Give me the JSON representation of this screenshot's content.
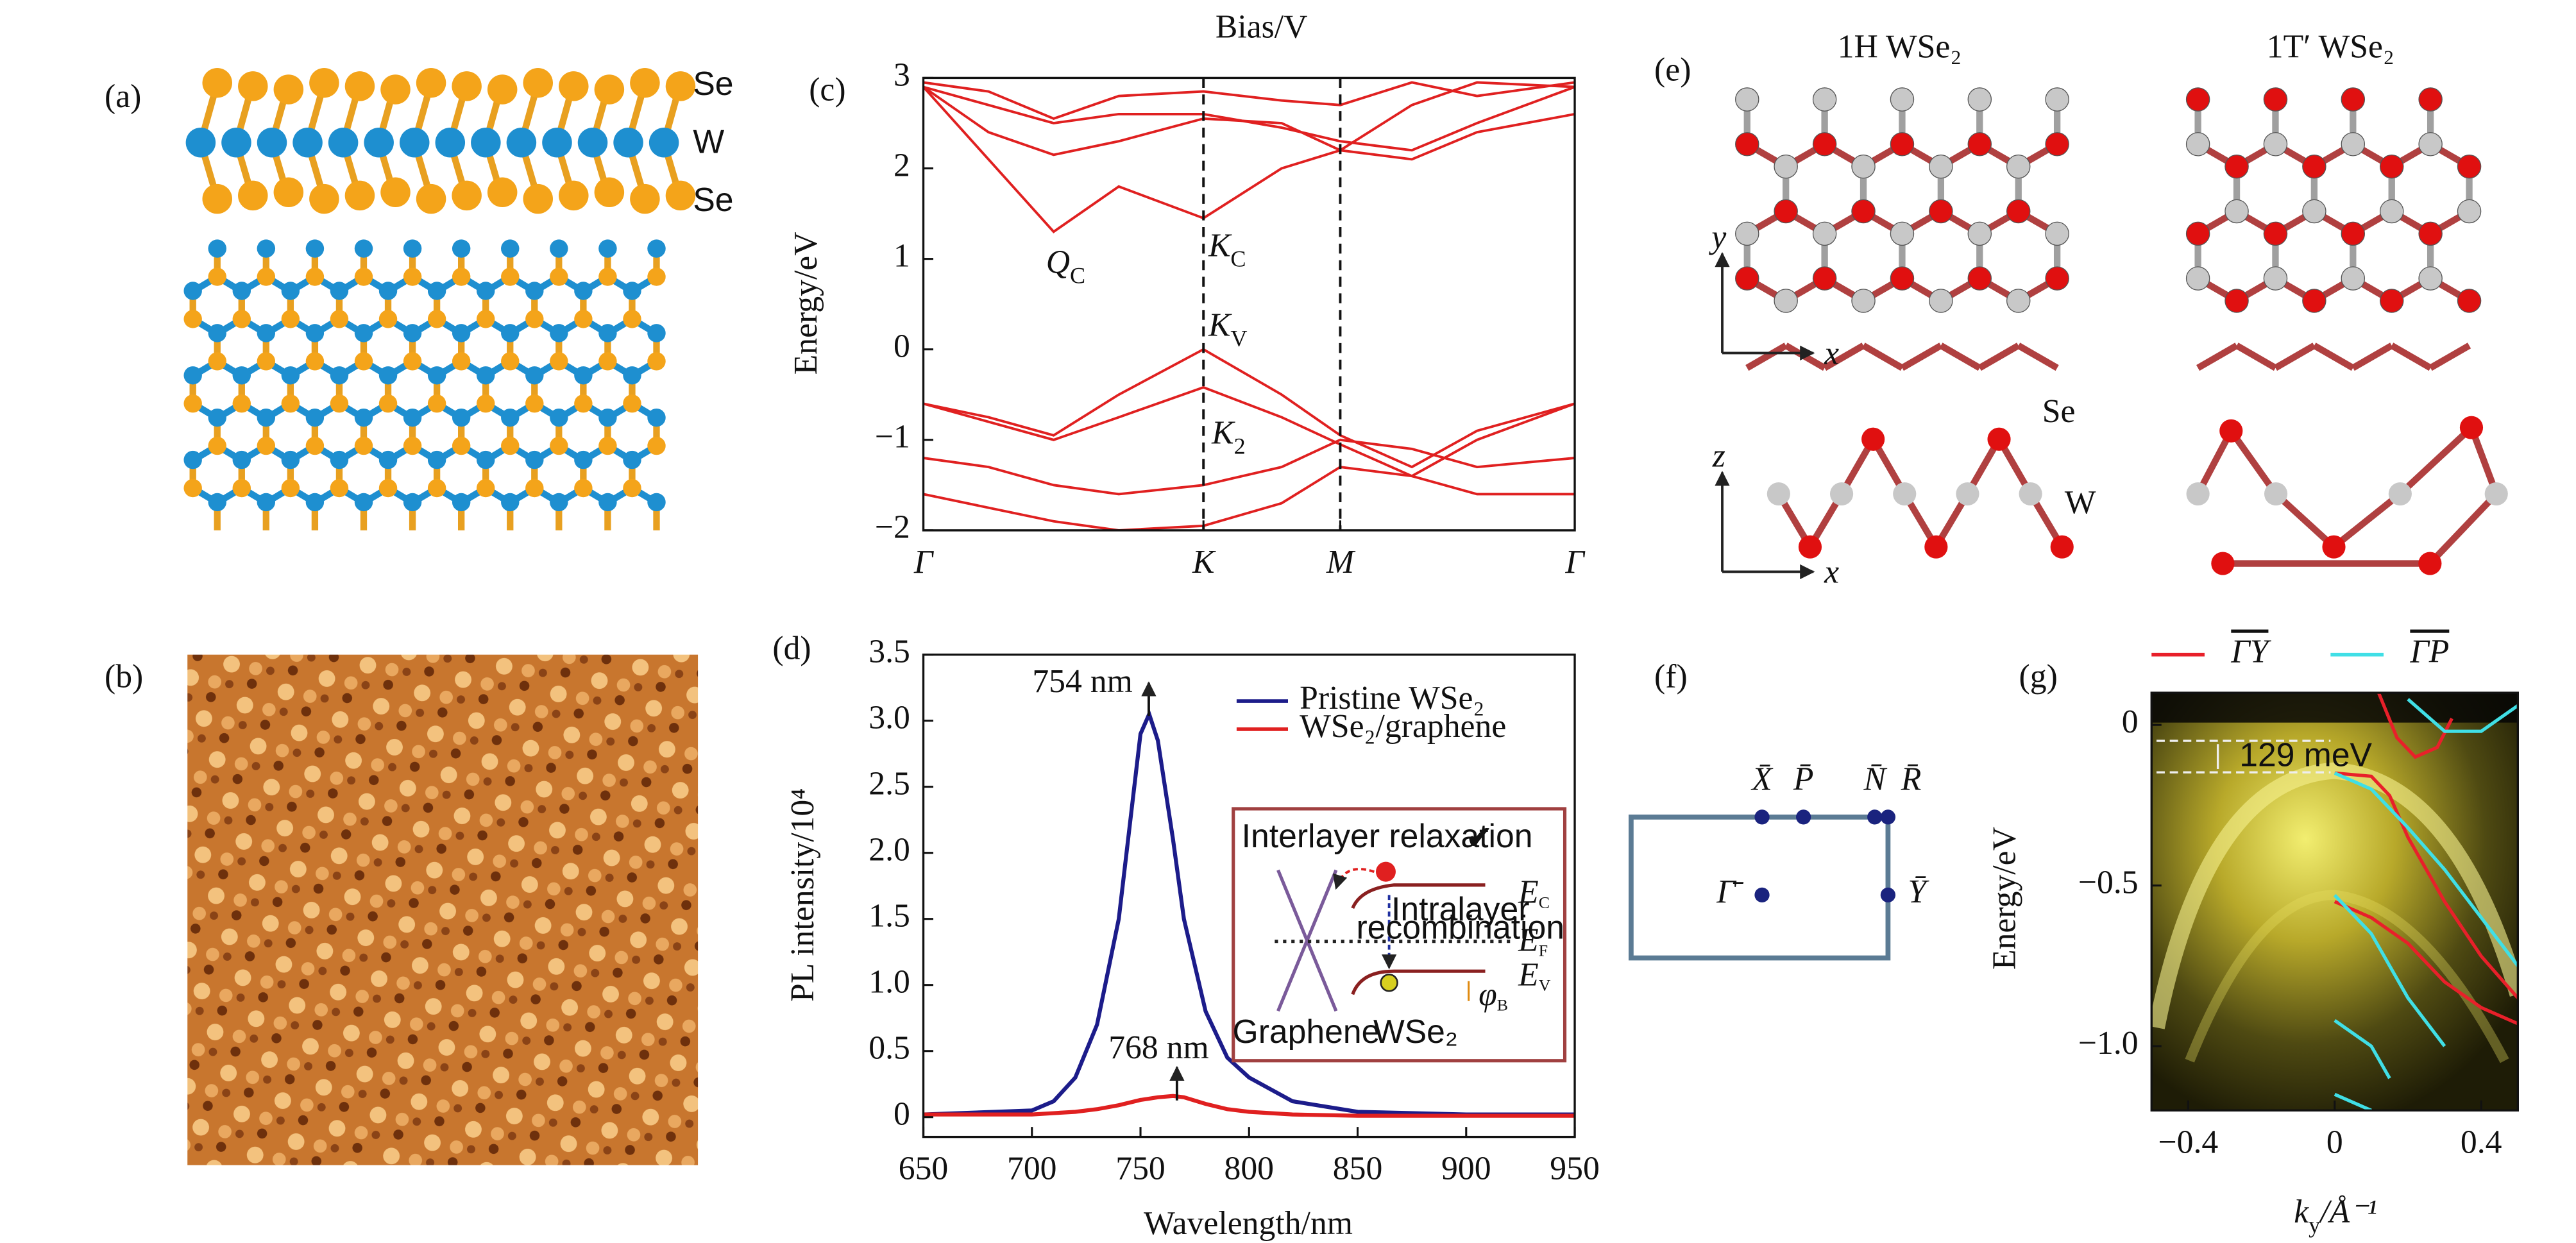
{
  "panel_labels": [
    "(a)",
    "(b)",
    "(c)",
    "(d)",
    "(e)",
    "(f)",
    "(g)"
  ],
  "panel_a": {
    "atoms": [
      "Se",
      "W",
      "Se"
    ]
  },
  "panel_e": {
    "titles": [
      "1H WSe₂",
      "1T′ WSe₂"
    ],
    "axes": [
      "y",
      "x",
      "z",
      "x"
    ],
    "atoms": [
      "Se",
      "W"
    ]
  },
  "panel_f": {
    "points": [
      "X̄",
      "P̄",
      "N̄",
      "R̄",
      "Γ̄",
      "Ȳ"
    ]
  },
  "chart_data": [
    {
      "type": "line",
      "title": "Bias/V",
      "ylabel": "Energy/eV",
      "xlim": [
        0,
        1
      ],
      "xticks": [
        {
          "value": 0,
          "label": "Γ"
        },
        {
          "value": 0.43,
          "label": "K"
        },
        {
          "value": 0.64,
          "label": "M"
        },
        {
          "value": 1,
          "label": "Γ"
        }
      ],
      "ylim": [
        -2,
        3
      ],
      "yticks": [
        {
          "value": -2,
          "label": "−2"
        },
        {
          "value": -1,
          "label": "−1"
        },
        0,
        1,
        2,
        3
      ],
      "vlines": [
        0.43,
        0.64
      ],
      "color": "#e02020",
      "x": [
        0,
        0.1,
        0.2,
        0.3,
        0.43,
        0.55,
        0.64,
        0.75,
        0.85,
        1
      ],
      "series": [
        {
          "values": [
            2.9,
            2.1,
            1.3,
            1.8,
            1.45,
            2.0,
            2.2,
            2.7,
            2.95,
            2.9
          ]
        },
        {
          "values": [
            2.9,
            2.4,
            2.15,
            2.3,
            2.55,
            2.5,
            2.2,
            2.1,
            2.4,
            2.6
          ]
        },
        {
          "values": [
            2.9,
            2.7,
            2.5,
            2.6,
            2.6,
            2.45,
            2.3,
            2.2,
            2.5,
            2.9
          ]
        },
        {
          "values": [
            2.95,
            2.85,
            2.55,
            2.8,
            2.85,
            2.75,
            2.7,
            2.95,
            2.8,
            2.95
          ]
        },
        {
          "values": [
            -0.6,
            -0.75,
            -0.95,
            -0.5,
            0.0,
            -0.5,
            -0.95,
            -1.3,
            -0.9,
            -0.6
          ]
        },
        {
          "values": [
            -0.6,
            -0.8,
            -1.0,
            -0.75,
            -0.42,
            -0.75,
            -1.05,
            -1.4,
            -1.0,
            -0.6
          ]
        },
        {
          "values": [
            -1.2,
            -1.3,
            -1.5,
            -1.6,
            -1.5,
            -1.3,
            -1.0,
            -1.1,
            -1.3,
            -1.2
          ]
        },
        {
          "values": [
            -1.6,
            -1.75,
            -1.9,
            -2.0,
            -1.95,
            -1.7,
            -1.3,
            -1.4,
            -1.6,
            -1.6
          ]
        }
      ],
      "annotations": [
        {
          "text": "Q",
          "sub": "C"
        },
        {
          "text": "K",
          "sub": "C"
        },
        {
          "text": "K",
          "sub": "V"
        },
        {
          "text": "K",
          "sub": "2"
        }
      ]
    },
    {
      "type": "line",
      "xlabel": "Wavelength/nm",
      "ylabel": "PL intensity/10⁴",
      "xlim": [
        650,
        950
      ],
      "xticks": [
        650,
        700,
        750,
        800,
        850,
        900,
        950
      ],
      "ylim": [
        -0.15,
        3.5
      ],
      "yticks": [
        0,
        0.5,
        {
          "value": 1,
          "label": "1.0"
        },
        1.5,
        {
          "value": 2,
          "label": "2.0"
        },
        2.5,
        {
          "value": 3,
          "label": "3.0"
        },
        3.5
      ],
      "legend": "upper right",
      "x": [
        650,
        700,
        710,
        720,
        730,
        740,
        745,
        750,
        754,
        758,
        765,
        770,
        780,
        790,
        800,
        820,
        850,
        900,
        950
      ],
      "series": [
        {
          "name": "Pristine WSe₂",
          "color": "#1c1c8a",
          "values": [
            0.02,
            0.05,
            0.12,
            0.3,
            0.7,
            1.5,
            2.2,
            2.9,
            3.05,
            2.85,
            2.1,
            1.5,
            0.8,
            0.45,
            0.3,
            0.12,
            0.04,
            0.02,
            0.02
          ]
        },
        {
          "name": "WSe₂/graphene",
          "color": "#e02020",
          "values": [
            0.02,
            0.02,
            0.03,
            0.04,
            0.06,
            0.09,
            0.11,
            0.13,
            0.14,
            0.15,
            0.16,
            0.15,
            0.1,
            0.06,
            0.04,
            0.02,
            0.01,
            0.01,
            0.01
          ]
        }
      ],
      "annotations": [
        "754 nm",
        "768 nm"
      ],
      "inset": {
        "title": "Interlayer relaxation",
        "check": "✔",
        "recombination": [
          "Intralayer",
          "recombination"
        ],
        "levels": [
          {
            "text": "E",
            "sub": "C"
          },
          {
            "text": "E",
            "sub": "F"
          },
          {
            "text": "E",
            "sub": "V"
          },
          {
            "text": "φ",
            "sub": "B"
          }
        ],
        "materials": [
          "Graphene",
          "WSe₂"
        ]
      }
    },
    {
      "type": "line",
      "xlabel": {
        "text": "k",
        "sub": "y",
        "rest": "/Å⁻¹"
      },
      "ylabel": "Energy/eV",
      "xlim": [
        -0.5,
        0.5
      ],
      "xticks": [
        {
          "value": -0.4,
          "label": "−0.4"
        },
        0,
        0.4
      ],
      "ylim": [
        -1.2,
        0.1
      ],
      "yticks": [
        0,
        {
          "value": -0.5,
          "label": "−0.5"
        },
        {
          "value": -1,
          "label": "−1.0"
        }
      ],
      "legend": "top",
      "series": [
        {
          "name": "ΓY",
          "color": "#e8202a",
          "x": [
            0.12,
            0.17,
            0.22,
            0.28,
            0.32,
            null,
            0,
            0.1,
            0.15,
            0.2,
            0.3,
            0.4,
            0.5,
            null,
            0,
            0.1,
            0.2,
            0.3,
            0.4,
            0.5
          ],
          "values": [
            0.1,
            -0.04,
            -0.1,
            -0.07,
            0.02,
            null,
            -0.15,
            -0.16,
            -0.22,
            -0.35,
            -0.55,
            -0.72,
            -0.85,
            null,
            -0.55,
            -0.6,
            -0.68,
            -0.8,
            -0.88,
            -0.93
          ]
        },
        {
          "name": "ΓP",
          "color": "#40dfe6",
          "x": [
            0.2,
            0.3,
            0.4,
            0.5,
            null,
            0,
            0.1,
            0.2,
            0.3,
            0.4,
            0.5,
            null,
            0,
            0.1,
            0.2,
            0.3,
            null,
            0,
            0.1,
            0.15,
            null,
            0,
            0.1
          ],
          "values": [
            0.08,
            -0.02,
            -0.02,
            0.06,
            null,
            -0.15,
            -0.2,
            -0.32,
            -0.45,
            -0.6,
            -0.75,
            null,
            -0.53,
            -0.65,
            -0.85,
            -1.0,
            null,
            -0.92,
            -1.0,
            -1.1,
            null,
            -1.15,
            -1.2
          ]
        }
      ],
      "annotations": [
        "129 meV"
      ]
    }
  ]
}
